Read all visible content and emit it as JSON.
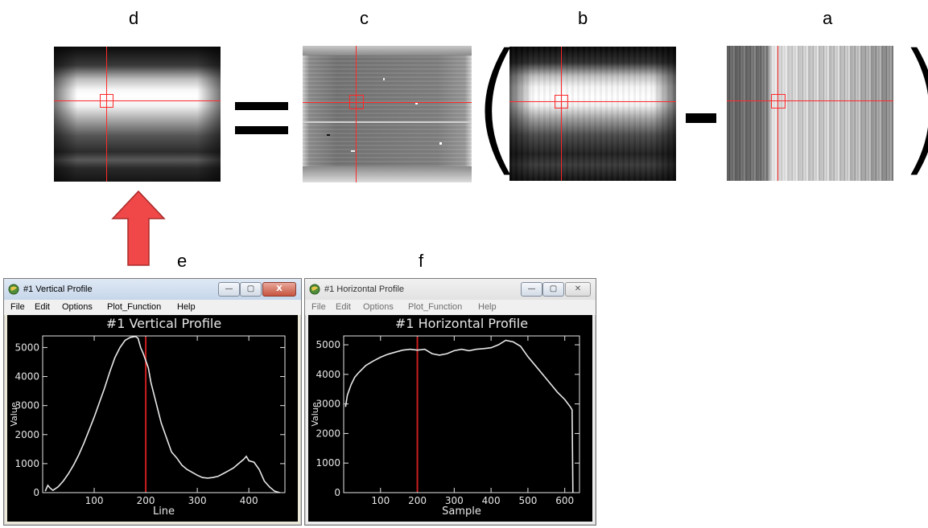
{
  "panel_labels": {
    "d": "d",
    "c": "c",
    "b": "b",
    "a": "a",
    "e": "e",
    "f": "f"
  },
  "operators": {
    "equals": "=",
    "open_paren": "(",
    "minus": "-",
    "close_paren": ")"
  },
  "colors": {
    "crosshair": "#ff2a2a",
    "arrow": "#f04848",
    "plot_line": "#e8e8e8",
    "cursor_line": "#c81e1e"
  },
  "windows": [
    {
      "title": "#1 Vertical Profile",
      "menu": [
        "File",
        "Edit",
        "Options",
        "Plot_Function",
        "Help"
      ],
      "buttons": {
        "minimize": "—",
        "maximize": "▢",
        "close": "X"
      },
      "plot_title": "#1 Vertical Profile"
    },
    {
      "title": "#1 Horizontal Profile",
      "menu": [
        "File",
        "Edit",
        "Options",
        "Plot_Function",
        "Help"
      ],
      "buttons": {
        "minimize": "—",
        "maximize": "▢",
        "close": "✕"
      },
      "plot_title": "#1 Horizontal Profile"
    }
  ],
  "chart_data": [
    {
      "type": "line",
      "title": "#1 Vertical Profile",
      "xlabel": "Line",
      "ylabel": "Value",
      "xlim": [
        0,
        470
      ],
      "ylim": [
        0,
        5400
      ],
      "xticks": [
        100,
        200,
        300,
        400
      ],
      "yticks": [
        0,
        1000,
        2000,
        3000,
        4000,
        5000
      ],
      "cursor_x": 200,
      "series": [
        {
          "x": [
            5,
            10,
            15,
            20,
            30,
            40,
            50,
            60,
            70,
            80,
            90,
            100,
            110,
            120,
            130,
            140,
            150,
            160,
            170,
            180,
            185,
            190,
            195,
            200,
            205,
            210,
            220,
            230,
            240,
            250,
            260,
            270,
            280,
            290,
            300,
            310,
            320,
            330,
            340,
            350,
            360,
            370,
            380,
            390,
            395,
            400,
            410,
            420,
            430,
            440,
            450,
            460
          ],
          "y": [
            50,
            250,
            150,
            80,
            200,
            400,
            650,
            950,
            1300,
            1700,
            2150,
            2600,
            3100,
            3600,
            4150,
            4650,
            5000,
            5250,
            5350,
            5380,
            5320,
            5000,
            4800,
            4550,
            4300,
            3800,
            3100,
            2400,
            1900,
            1400,
            1200,
            950,
            800,
            700,
            600,
            520,
            500,
            520,
            560,
            650,
            750,
            850,
            1000,
            1150,
            1250,
            1100,
            1050,
            800,
            400,
            200,
            50,
            0
          ]
        }
      ]
    },
    {
      "type": "line",
      "title": "#1 Horizontal Profile",
      "xlabel": "Sample",
      "ylabel": "Value",
      "xlim": [
        0,
        640
      ],
      "ylim": [
        0,
        5300
      ],
      "xticks": [
        100,
        200,
        300,
        400,
        500,
        600
      ],
      "yticks": [
        0,
        1000,
        2000,
        3000,
        4000,
        5000
      ],
      "cursor_x": 200,
      "series": [
        {
          "x": [
            5,
            10,
            20,
            30,
            40,
            60,
            80,
            100,
            120,
            140,
            160,
            180,
            200,
            220,
            240,
            260,
            280,
            300,
            320,
            340,
            360,
            380,
            400,
            420,
            440,
            460,
            480,
            500,
            520,
            540,
            560,
            580,
            600,
            615,
            620,
            622
          ],
          "y": [
            2900,
            3300,
            3650,
            3900,
            4050,
            4300,
            4450,
            4580,
            4680,
            4750,
            4820,
            4850,
            4820,
            4850,
            4700,
            4650,
            4700,
            4800,
            4850,
            4800,
            4850,
            4870,
            4900,
            5000,
            5150,
            5100,
            4950,
            4600,
            4300,
            4000,
            3700,
            3400,
            3150,
            2900,
            2800,
            0
          ]
        }
      ]
    }
  ]
}
